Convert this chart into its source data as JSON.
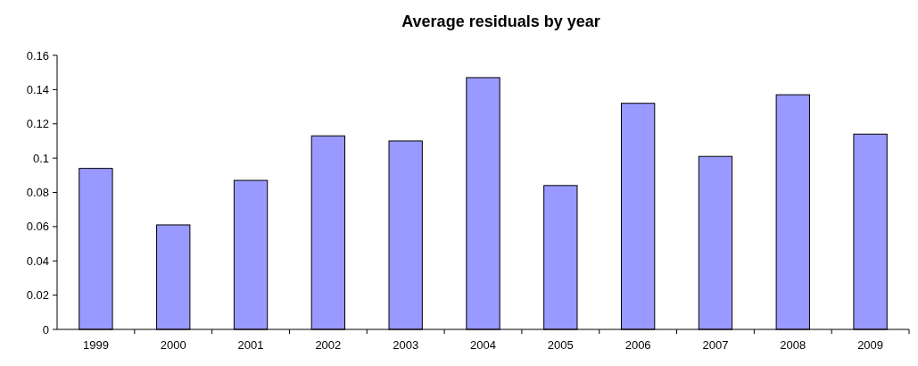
{
  "chart_data": {
    "type": "bar",
    "title": "Average residuals by year",
    "categories": [
      "1999",
      "2000",
      "2001",
      "2002",
      "2003",
      "2004",
      "2005",
      "2006",
      "2007",
      "2008",
      "2009"
    ],
    "values": [
      0.094,
      0.061,
      0.087,
      0.113,
      0.11,
      0.147,
      0.084,
      0.132,
      0.101,
      0.137,
      0.114
    ],
    "color": "#9999ff",
    "ylim": [
      0,
      0.16
    ],
    "yticks": [
      0,
      {
        "value": 0.02,
        "label": "0.02"
      },
      {
        "value": 0.04,
        "label": "0.04"
      },
      {
        "value": 0.06,
        "label": "0.06"
      },
      {
        "value": 0.08,
        "label": "0.08"
      },
      {
        "value": 0.1,
        "label": "0.1"
      },
      {
        "value": 0.12,
        "label": "0.12"
      },
      {
        "value": 0.14,
        "label": "0.14"
      },
      {
        "value": 0.16,
        "label": "0.16"
      }
    ],
    "grid": false
  }
}
